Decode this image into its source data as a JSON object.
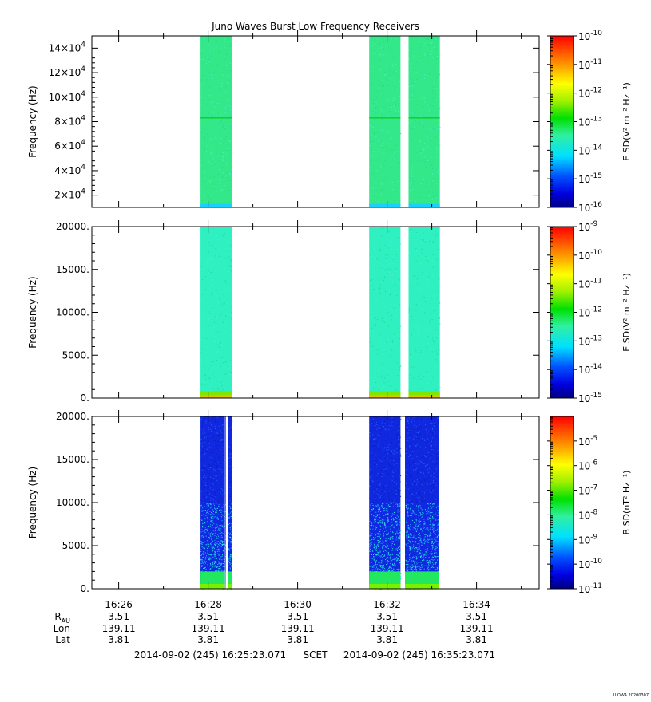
{
  "chart_data": {
    "type": "heatmap",
    "title": "Juno Waves Burst Low Frequency Receivers",
    "time_axis": {
      "ticks": [
        "16:26",
        "16:28",
        "16:30",
        "16:32",
        "16:34"
      ],
      "range_minutes": [
        0,
        10
      ]
    },
    "ephemeris": {
      "rows": [
        {
          "label_main": "R",
          "label_sub": "AU",
          "values": [
            "3.51",
            "3.51",
            "3.51",
            "3.51",
            "3.51"
          ]
        },
        {
          "label_main": "Lon",
          "label_sub": "",
          "values": [
            "139.11",
            "139.11",
            "139.11",
            "139.11",
            "139.11"
          ]
        },
        {
          "label_main": "Lat",
          "label_sub": "",
          "values": [
            "3.81",
            "3.81",
            "3.81",
            "3.81",
            "3.81"
          ]
        }
      ]
    },
    "time_range": {
      "start": "2014-09-02 (245) 16:25:23.071",
      "mid": "SCET",
      "end": "2014-09-02 (245) 16:35:23.071"
    },
    "footer_tag": "UIOWA 20200307",
    "panels": [
      {
        "ylabel": "Frequency (Hz)",
        "ylim": [
          10000,
          150000
        ],
        "y_ticks": [
          {
            "value": 20000,
            "mant": "2×10",
            "exp": "4"
          },
          {
            "value": 40000,
            "mant": "4×10",
            "exp": "4"
          },
          {
            "value": 60000,
            "mant": "6×10",
            "exp": "4"
          },
          {
            "value": 80000,
            "mant": "8×10",
            "exp": "4"
          },
          {
            "value": 100000,
            "mant": "10×10",
            "exp": "4"
          },
          {
            "value": 120000,
            "mant": "12×10",
            "exp": "4"
          },
          {
            "value": 140000,
            "mant": "14×10",
            "exp": "4"
          }
        ],
        "colorbar": {
          "label": "E SD(V² m⁻² Hz⁻¹)",
          "log_min": -16,
          "log_max": -10,
          "ticks": [
            "-10",
            "-11",
            "-12",
            "-13",
            "-14",
            "-15",
            "-16"
          ]
        },
        "segments": [
          {
            "start": 2.43,
            "end": 3.13,
            "base_color": "#33e888",
            "low_band_color": "#1ad0ff",
            "low_band_frac": 0.02,
            "noise": "fine"
          },
          {
            "start": 6.2,
            "end": 6.9,
            "base_color": "#33e888",
            "low_band_color": "#1ad0ff",
            "low_band_frac": 0.02,
            "noise": "fine"
          },
          {
            "start": 7.08,
            "end": 7.78,
            "base_color": "#33e888",
            "low_band_color": "#1ad0ff",
            "low_band_frac": 0.02,
            "noise": "fine"
          }
        ],
        "line_value": 83000
      },
      {
        "ylabel": "Frequency (Hz)",
        "ylim": [
          0,
          20000
        ],
        "y_ticks": [
          {
            "value": 0,
            "label": "0."
          },
          {
            "value": 5000,
            "label": "5000."
          },
          {
            "value": 10000,
            "label": "10000."
          },
          {
            "value": 15000,
            "label": "15000."
          },
          {
            "value": 20000,
            "label": "20000."
          }
        ],
        "colorbar": {
          "label": "E SD(V² m⁻² Hz⁻¹)",
          "log_min": -15,
          "log_max": -9,
          "ticks": [
            "-9",
            "-10",
            "-11",
            "-12",
            "-13",
            "-14",
            "-15"
          ]
        },
        "segments": [
          {
            "start": 2.43,
            "end": 3.13,
            "base_color": "#2ef0c0",
            "low_band_color": "#7fe600",
            "low_band_frac": 0.04,
            "noise": "fine"
          },
          {
            "start": 6.2,
            "end": 6.9,
            "base_color": "#2ef0c0",
            "low_band_color": "#7fe600",
            "low_band_frac": 0.04,
            "noise": "fine"
          },
          {
            "start": 7.08,
            "end": 7.78,
            "base_color": "#2ef0c0",
            "low_band_color": "#7fe600",
            "low_band_frac": 0.04,
            "noise": "fine"
          }
        ]
      },
      {
        "ylabel": "Frequency (Hz)",
        "ylim": [
          0,
          20000
        ],
        "y_ticks": [
          {
            "value": 0,
            "label": "0."
          },
          {
            "value": 5000,
            "label": "5000."
          },
          {
            "value": 10000,
            "label": "10000."
          },
          {
            "value": 15000,
            "label": "15000."
          },
          {
            "value": 20000,
            "label": "20000."
          }
        ],
        "colorbar": {
          "label": "B SD(nT² Hz⁻¹)",
          "log_min": -11,
          "log_max": -4,
          "ticks": [
            "-5",
            "-6",
            "-7",
            "-8",
            "-9",
            "-10",
            "-11"
          ]
        },
        "segments": [
          {
            "start": 2.43,
            "end": 3.13,
            "base_color": "#1029e0",
            "low_band_color": "#22e860",
            "low_band_frac": 0.1,
            "noise": "grad"
          },
          {
            "start": 6.2,
            "end": 6.9,
            "base_color": "#1029e0",
            "low_band_color": "#22e860",
            "low_band_frac": 0.1,
            "noise": "grad"
          },
          {
            "start": 7.0,
            "end": 7.75,
            "base_color": "#1029e0",
            "low_band_color": "#22e860",
            "low_band_frac": 0.1,
            "noise": "grad"
          }
        ],
        "gap": {
          "start": 3.0,
          "end": 3.04
        }
      }
    ]
  }
}
